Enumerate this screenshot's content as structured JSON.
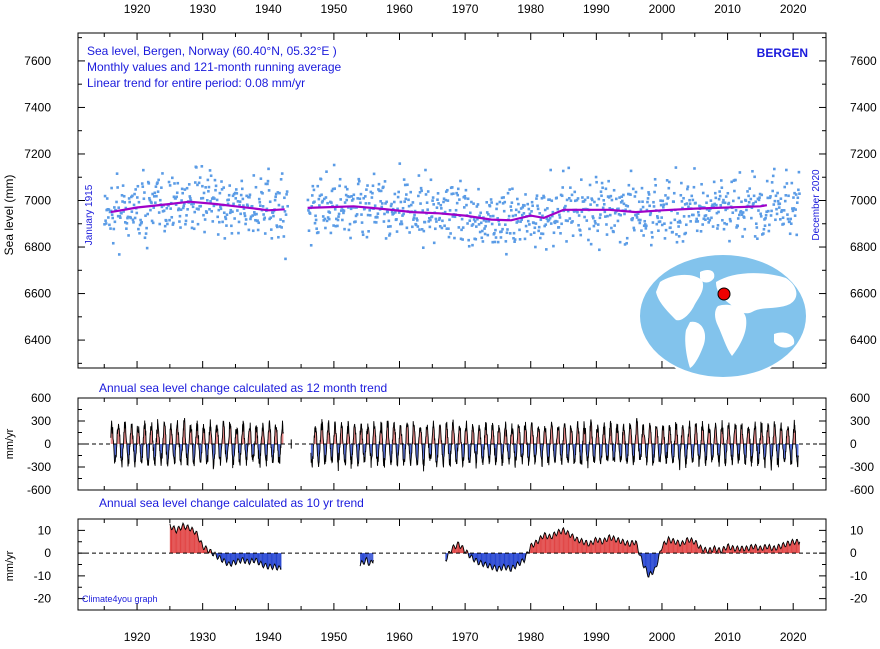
{
  "chart_data": [
    {
      "type": "scatter",
      "title": "Sea level, Bergen, Norway (60.40°N, 05.32°E )",
      "subtitle_1": "Monthly values and 121-month running average",
      "subtitle_2": "Linear trend for entire period: 0.08 mm/yr",
      "station_label": "BERGEN",
      "ylabel": "Sea level (mm)",
      "start_label": "January 1915",
      "end_label": "December 2020",
      "xlim": [
        1911,
        2025
      ],
      "ylim": [
        6280,
        7720
      ],
      "x_ticks": [
        "1920",
        "1930",
        "1940",
        "1950",
        "1960",
        "1970",
        "1980",
        "1990",
        "2000",
        "2010",
        "2020"
      ],
      "y_ticks": [
        "6400",
        "6600",
        "6800",
        "7000",
        "7200",
        "7400",
        "7600"
      ],
      "scatter_color": "#5b9ce6",
      "running_average_color": "#a000c8",
      "gap": [
        1943,
        1946
      ],
      "running_average": {
        "x": [
          1916,
          1920,
          1925,
          1928,
          1932,
          1935,
          1938,
          1940,
          1942.5,
          1946,
          1950,
          1953,
          1957,
          1962,
          1966,
          1970,
          1974,
          1977,
          1980,
          1982,
          1985,
          1988,
          1992,
          1996,
          2000,
          2005,
          2010,
          2015,
          2016
        ],
        "y": [
          6950,
          6970,
          6985,
          6995,
          6985,
          6975,
          6965,
          6958,
          6962,
          6968,
          6972,
          6975,
          6965,
          6950,
          6945,
          6935,
          6918,
          6915,
          6935,
          6925,
          6960,
          6960,
          6960,
          6950,
          6958,
          6965,
          6970,
          6975,
          6980
        ]
      },
      "inset": "world-map-with-bergen-marker"
    },
    {
      "type": "area",
      "title": "Annual sea level change calculated as 12 month trend",
      "ylabel": "mm/yr",
      "ylim": [
        -600,
        600
      ],
      "y_ticks": [
        "600",
        "300",
        "0",
        "-300",
        "-600"
      ],
      "x_start": 1916,
      "x_end": 2020.8,
      "gap": [
        1942.3,
        1946.5
      ],
      "amplitude_range": [
        -450,
        420
      ],
      "positive_color": "#e06060",
      "negative_color": "#1f3fd0"
    },
    {
      "type": "area",
      "title": "Annual sea level change calculated as 10 yr trend",
      "ylabel": "mm/yr",
      "ylim": [
        -25,
        15
      ],
      "y_ticks": [
        "10",
        "0",
        "-10",
        "-20"
      ],
      "positive_color": "#e04040",
      "negative_color": "#1f3fd0",
      "segments": [
        {
          "x": [
            1925,
            1926,
            1927,
            1928,
            1929,
            1930,
            1931,
            1932,
            1933,
            1934,
            1935,
            1936,
            1937,
            1938,
            1939,
            1940,
            1941,
            1942
          ],
          "y": [
            12,
            10,
            12,
            11,
            9,
            3,
            1,
            -1,
            -3,
            -5,
            -4,
            -3,
            -4,
            -3,
            -5,
            -6,
            -6,
            -7
          ]
        },
        {
          "x": [
            1954,
            1955,
            1955.5,
            1956
          ],
          "y": [
            -5,
            -3,
            -5,
            -3
          ]
        },
        {
          "x": [
            1967,
            1968,
            1969,
            1970,
            1971,
            1972,
            1973,
            1974,
            1975,
            1976,
            1977,
            1978,
            1979,
            1980,
            1981,
            1982,
            1983,
            1984,
            1985,
            1986,
            1987,
            1988,
            1989,
            1990,
            1991,
            1992,
            1993,
            1994,
            1995,
            1996,
            1997,
            1998,
            1999,
            2000,
            2001,
            2002,
            2003,
            2004,
            2005,
            2006,
            2007,
            2008,
            2009,
            2010,
            2011,
            2012,
            2013,
            2014,
            2015,
            2016,
            2017,
            2018,
            2019,
            2020,
            2021
          ],
          "y": [
            -3,
            2,
            4,
            1,
            -2,
            -4,
            -5,
            -6,
            -7,
            -6,
            -7,
            -5,
            -3,
            3,
            5,
            8,
            7,
            9,
            10,
            8,
            6,
            5,
            4,
            6,
            5,
            7,
            6,
            5,
            4,
            5,
            -4,
            -10,
            -7,
            3,
            6,
            5,
            4,
            6,
            5,
            2,
            1,
            2,
            1,
            3,
            2,
            2,
            2,
            3,
            2,
            3,
            2,
            3,
            4,
            5,
            5
          ]
        }
      ]
    }
  ],
  "credit": "Climate4you graph"
}
